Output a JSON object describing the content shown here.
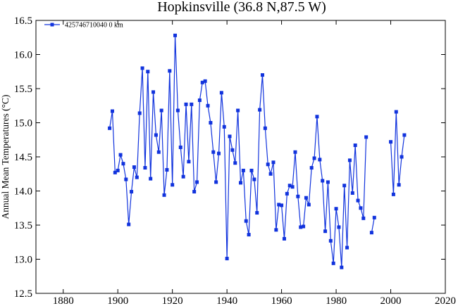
{
  "chart_data": {
    "type": "line",
    "title": "Hopkinsville (36.8 N,87.5 W)",
    "xlabel": "",
    "ylabel": "Annual Mean Temperatures (°C)",
    "xlim": [
      1870,
      2020
    ],
    "ylim": [
      12.5,
      16.5
    ],
    "x_ticks": [
      1880,
      1900,
      1920,
      1940,
      1960,
      1980,
      2000,
      2020
    ],
    "y_ticks": [
      12.5,
      13.0,
      13.5,
      14.0,
      14.5,
      15.0,
      15.5,
      16.0,
      16.5
    ],
    "grid": false,
    "legend_position": "top-left",
    "series": [
      {
        "name": "425746710040 0 km",
        "color": "#1133dd",
        "marker": "square",
        "points": [
          [
            1897,
            14.92
          ],
          [
            1898,
            15.17
          ],
          [
            1899,
            14.27
          ],
          [
            1900,
            14.3
          ],
          [
            1901,
            14.53
          ],
          [
            1902,
            14.4
          ],
          [
            1903,
            14.17
          ],
          [
            1904,
            13.51
          ],
          [
            1905,
            13.99
          ],
          [
            1906,
            14.35
          ],
          [
            1907,
            14.2
          ],
          [
            1908,
            15.14
          ],
          [
            1909,
            15.8
          ],
          [
            1910,
            14.34
          ],
          [
            1911,
            15.75
          ],
          [
            1912,
            14.18
          ],
          [
            1913,
            15.45
          ],
          [
            1914,
            14.82
          ],
          [
            1915,
            14.57
          ],
          [
            1916,
            15.18
          ],
          [
            1917,
            13.94
          ],
          [
            1918,
            14.31
          ],
          [
            1919,
            15.76
          ],
          [
            1920,
            14.09
          ],
          [
            1921,
            16.28
          ],
          [
            1922,
            15.18
          ],
          [
            1923,
            14.64
          ],
          [
            1924,
            14.21
          ],
          [
            1925,
            15.27
          ],
          [
            1926,
            14.43
          ],
          [
            1927,
            15.27
          ],
          [
            1928,
            13.99
          ],
          [
            1929,
            14.13
          ],
          [
            1930,
            15.33
          ],
          [
            1931,
            15.59
          ],
          [
            1932,
            15.61
          ],
          [
            1933,
            15.25
          ],
          [
            1934,
            15.0
          ],
          [
            1935,
            14.57
          ],
          [
            1936,
            14.13
          ],
          [
            1937,
            14.55
          ],
          [
            1938,
            15.44
          ],
          [
            1939,
            14.94
          ],
          [
            1940,
            13.01
          ],
          [
            1941,
            14.8
          ],
          [
            1942,
            14.6
          ],
          [
            1943,
            14.41
          ],
          [
            1944,
            15.18
          ],
          [
            1945,
            14.12
          ],
          [
            1946,
            14.3
          ],
          [
            1947,
            13.56
          ],
          [
            1948,
            13.36
          ],
          [
            1949,
            14.3
          ],
          [
            1950,
            14.17
          ],
          [
            1951,
            13.68
          ],
          [
            1952,
            15.19
          ],
          [
            1953,
            15.7
          ],
          [
            1954,
            14.92
          ],
          [
            1955,
            14.39
          ],
          [
            1956,
            14.25
          ],
          [
            1957,
            14.42
          ],
          [
            1958,
            13.43
          ],
          [
            1959,
            13.8
          ],
          [
            1960,
            13.79
          ],
          [
            1961,
            13.3
          ],
          [
            1962,
            13.96
          ],
          [
            1963,
            14.08
          ],
          [
            1964,
            14.06
          ],
          [
            1965,
            14.57
          ],
          [
            1966,
            13.92
          ],
          [
            1967,
            13.47
          ],
          [
            1968,
            13.48
          ],
          [
            1969,
            13.9
          ],
          [
            1970,
            13.8
          ],
          [
            1971,
            14.34
          ],
          [
            1972,
            14.48
          ],
          [
            1973,
            15.09
          ],
          [
            1974,
            14.46
          ],
          [
            1975,
            14.15
          ],
          [
            1976,
            13.41
          ],
          [
            1977,
            14.13
          ],
          [
            1978,
            13.27
          ],
          [
            1979,
            12.94
          ],
          [
            1980,
            13.74
          ],
          [
            1981,
            13.47
          ],
          [
            1982,
            12.88
          ],
          [
            1983,
            14.08
          ],
          [
            1984,
            13.17
          ],
          [
            1985,
            14.45
          ],
          [
            1986,
            13.97
          ],
          [
            1987,
            14.67
          ],
          [
            1988,
            13.86
          ],
          [
            1989,
            13.75
          ],
          [
            1990,
            13.6
          ],
          [
            1991,
            14.79
          ],
          null,
          [
            1993,
            13.39
          ],
          [
            1994,
            13.61
          ],
          null,
          [
            2000,
            14.72
          ],
          [
            2001,
            13.95
          ],
          [
            2002,
            15.16
          ],
          [
            2003,
            14.09
          ],
          [
            2004,
            14.5
          ],
          [
            2005,
            14.82
          ]
        ]
      }
    ]
  }
}
